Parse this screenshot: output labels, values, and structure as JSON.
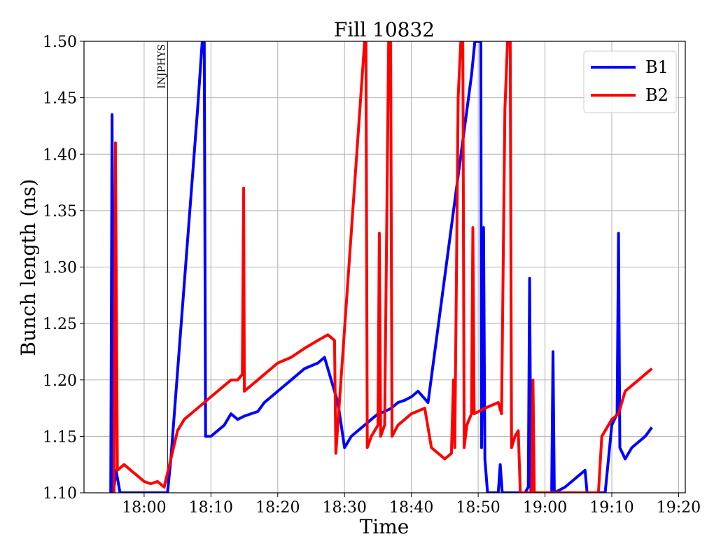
{
  "chart_data": {
    "type": "line",
    "title": "Fill 10832",
    "xlabel": "Time",
    "ylabel": "Bunch length (ns)",
    "xlim": [
      "17:51",
      "19:21"
    ],
    "ylim": [
      1.1,
      1.5
    ],
    "x_ticks": [
      "18:00",
      "18:10",
      "18:20",
      "18:30",
      "18:40",
      "18:50",
      "19:00",
      "19:10",
      "19:20"
    ],
    "y_ticks": [
      "1.10",
      "1.15",
      "1.20",
      "1.25",
      "1.30",
      "1.35",
      "1.40",
      "1.45",
      "1.50"
    ],
    "grid": true,
    "legend": {
      "placement": "top-right",
      "entries": [
        "B1",
        "B2"
      ]
    },
    "annotations": [
      {
        "text": "INJPHYS",
        "x": "18:03.5"
      }
    ],
    "series": [
      {
        "name": "B1",
        "color": "#0000ff",
        "points": [
          [
            "17:55.0",
            1.1
          ],
          [
            "17:55.2",
            1.435
          ],
          [
            "17:55.4",
            1.1
          ],
          [
            "17:55.8",
            1.12
          ],
          [
            "17:56.4",
            1.1
          ],
          [
            "17:57.0",
            1.1
          ],
          [
            "18:03.5",
            1.1
          ],
          [
            "18:04.0",
            1.13
          ],
          [
            "18:08.0",
            1.44
          ],
          [
            "18:08.7",
            1.5
          ],
          [
            "18:09.0",
            1.5
          ],
          [
            "18:09.2",
            1.15
          ],
          [
            "18:10.0",
            1.15
          ],
          [
            "18:11.0",
            1.155
          ],
          [
            "18:12.0",
            1.16
          ],
          [
            "18:13.0",
            1.17
          ],
          [
            "18:14.0",
            1.165
          ],
          [
            "18:15.0",
            1.168
          ],
          [
            "18:16.0",
            1.17
          ],
          [
            "18:17.0",
            1.172
          ],
          [
            "18:18.0",
            1.18
          ],
          [
            "18:20.0",
            1.19
          ],
          [
            "18:22.0",
            1.2
          ],
          [
            "18:24.0",
            1.21
          ],
          [
            "18:26.0",
            1.215
          ],
          [
            "18:27.0",
            1.22
          ],
          [
            "18:28.0",
            1.2
          ],
          [
            "18:29.0",
            1.18
          ],
          [
            "18:30.0",
            1.14
          ],
          [
            "18:31.0",
            1.15
          ],
          [
            "18:32.0",
            1.155
          ],
          [
            "18:33.0",
            1.16
          ],
          [
            "18:34.0",
            1.165
          ],
          [
            "18:35.0",
            1.17
          ],
          [
            "18:36.0",
            1.172
          ],
          [
            "18:37.0",
            1.175
          ],
          [
            "18:38.0",
            1.18
          ],
          [
            "18:39.0",
            1.182
          ],
          [
            "18:40.0",
            1.185
          ],
          [
            "18:41.0",
            1.19
          ],
          [
            "18:42.5",
            1.18
          ],
          [
            "18:49.0",
            1.47
          ],
          [
            "18:49.5",
            1.5
          ],
          [
            "18:50.4",
            1.5
          ],
          [
            "18:50.5",
            1.14
          ],
          [
            "18:50.8",
            1.335
          ],
          [
            "18:51.0",
            1.13
          ],
          [
            "18:51.4",
            1.1
          ],
          [
            "18:52.0",
            1.1
          ],
          [
            "18:53.0",
            1.1
          ],
          [
            "18:53.3",
            1.125
          ],
          [
            "18:53.6",
            1.1
          ],
          [
            "18:57.0",
            1.1
          ],
          [
            "18:57.5",
            1.105
          ],
          [
            "18:57.7",
            1.29
          ],
          [
            "18:57.9",
            1.1
          ],
          [
            "19:01.0",
            1.1
          ],
          [
            "19:01.2",
            1.225
          ],
          [
            "19:01.4",
            1.1
          ],
          [
            "19:03.0",
            1.105
          ],
          [
            "19:05.0",
            1.115
          ],
          [
            "19:06.0",
            1.12
          ],
          [
            "19:06.3",
            1.1
          ],
          [
            "19:09.0",
            1.1
          ],
          [
            "19:10.0",
            1.16
          ],
          [
            "19:10.8",
            1.17
          ],
          [
            "19:11.0",
            1.33
          ],
          [
            "19:11.2",
            1.14
          ],
          [
            "19:12.0",
            1.13
          ],
          [
            "19:13.0",
            1.14
          ],
          [
            "19:14.0",
            1.145
          ],
          [
            "19:15.0",
            1.15
          ],
          [
            "19:16.0",
            1.158
          ]
        ]
      },
      {
        "name": "B2",
        "color": "#ff0000",
        "points": [
          [
            "17:55.5",
            1.1
          ],
          [
            "17:55.7",
            1.41
          ],
          [
            "17:56.0",
            1.12
          ],
          [
            "17:57.0",
            1.125
          ],
          [
            "17:58.0",
            1.12
          ],
          [
            "17:59.0",
            1.115
          ],
          [
            "18:00.0",
            1.11
          ],
          [
            "18:01.0",
            1.108
          ],
          [
            "18:02.0",
            1.11
          ],
          [
            "18:03.0",
            1.105
          ],
          [
            "18:04.0",
            1.13
          ],
          [
            "18:05.0",
            1.155
          ],
          [
            "18:06.0",
            1.165
          ],
          [
            "18:07.0",
            1.17
          ],
          [
            "18:08.0",
            1.175
          ],
          [
            "18:09.0",
            1.18
          ],
          [
            "18:10.0",
            1.185
          ],
          [
            "18:11.0",
            1.19
          ],
          [
            "18:12.0",
            1.195
          ],
          [
            "18:13.0",
            1.2
          ],
          [
            "18:14.0",
            1.2
          ],
          [
            "18:14.7",
            1.205
          ],
          [
            "18:14.9",
            1.37
          ],
          [
            "18:15.0",
            1.19
          ],
          [
            "18:16.0",
            1.195
          ],
          [
            "18:17.0",
            1.2
          ],
          [
            "18:18.0",
            1.205
          ],
          [
            "18:20.0",
            1.215
          ],
          [
            "18:22.0",
            1.22
          ],
          [
            "18:24.0",
            1.228
          ],
          [
            "18:26.0",
            1.235
          ],
          [
            "18:27.5",
            1.24
          ],
          [
            "18:28.5",
            1.235
          ],
          [
            "18:28.7",
            1.135
          ],
          [
            "18:33.0",
            1.5
          ],
          [
            "18:33.2",
            1.5
          ],
          [
            "18:33.4",
            1.14
          ],
          [
            "18:34.0",
            1.15
          ],
          [
            "18:35.0",
            1.16
          ],
          [
            "18:35.2",
            1.33
          ],
          [
            "18:35.4",
            1.15
          ],
          [
            "18:36.0",
            1.16
          ],
          [
            "18:36.6",
            1.5
          ],
          [
            "18:36.9",
            1.5
          ],
          [
            "18:37.1",
            1.15
          ],
          [
            "18:38.0",
            1.16
          ],
          [
            "18:40.0",
            1.17
          ],
          [
            "18:42.0",
            1.175
          ],
          [
            "18:43.0",
            1.14
          ],
          [
            "18:45.0",
            1.13
          ],
          [
            "18:46.0",
            1.135
          ],
          [
            "18:46.3",
            1.2
          ],
          [
            "18:46.5",
            1.14
          ],
          [
            "18:47.0",
            1.45
          ],
          [
            "18:47.4",
            1.5
          ],
          [
            "18:47.7",
            1.5
          ],
          [
            "18:47.9",
            1.14
          ],
          [
            "18:48.3",
            1.16
          ],
          [
            "18:49.0",
            1.17
          ],
          [
            "18:49.2",
            1.335
          ],
          [
            "18:49.4",
            1.17
          ],
          [
            "18:51.0",
            1.175
          ],
          [
            "18:53.0",
            1.18
          ],
          [
            "18:53.5",
            1.17
          ],
          [
            "18:54.0",
            1.44
          ],
          [
            "18:54.4",
            1.5
          ],
          [
            "18:54.8",
            1.5
          ],
          [
            "18:55.0",
            1.14
          ],
          [
            "18:55.5",
            1.15
          ],
          [
            "18:56.0",
            1.155
          ],
          [
            "18:56.3",
            1.1
          ],
          [
            "18:58.0",
            1.1
          ],
          [
            "18:58.2",
            1.2
          ],
          [
            "18:58.4",
            1.1
          ],
          [
            "19:08.0",
            1.1
          ],
          [
            "19:08.5",
            1.15
          ],
          [
            "19:09.0",
            1.155
          ],
          [
            "19:10.0",
            1.165
          ],
          [
            "19:11.0",
            1.17
          ],
          [
            "19:12.0",
            1.19
          ],
          [
            "19:13.0",
            1.195
          ],
          [
            "19:14.0",
            1.2
          ],
          [
            "19:15.0",
            1.205
          ],
          [
            "19:16.0",
            1.21
          ]
        ]
      }
    ]
  }
}
